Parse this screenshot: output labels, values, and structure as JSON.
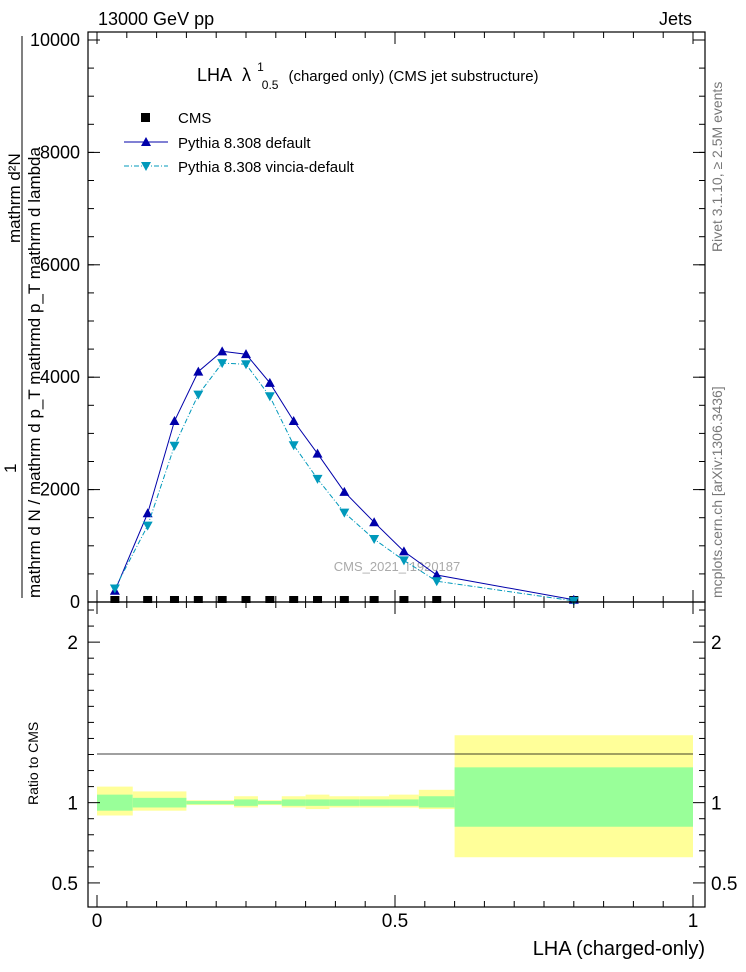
{
  "header": {
    "left": "13000 GeV pp",
    "right": "Jets"
  },
  "side_labels": {
    "rivet": "Rivet 3.1.10, ≥ 2.5M events",
    "mcplots": "mcplots.cern.ch [arXiv:1306.3436]"
  },
  "watermark": "CMS_2021_I1920187",
  "chart_data": [
    {
      "type": "line",
      "title": "LHA",
      "title_lambda": "λ",
      "title_sup": "1",
      "title_sub": "0.5",
      "title_rest": "(charged only) (CMS jet substructure)",
      "ylabel_numerator": "mathrm d²N",
      "ylabel_denominator": "mathrm d N / mathrm d p_T mathrmd p_T mathrm d lambda",
      "ylabel_one": "1",
      "xlim": [
        0,
        1
      ],
      "ylim": [
        0,
        10000
      ],
      "yticks": [
        "0",
        "2000",
        "4000",
        "6000",
        "8000",
        "10000"
      ],
      "legend": [
        "CMS",
        "Pythia 8.308 default",
        "Pythia 8.308 vincia-default"
      ],
      "series": [
        {
          "name": "CMS",
          "marker": "square",
          "color": "#000000",
          "x": [
            0.03,
            0.085,
            0.13,
            0.17,
            0.21,
            0.25,
            0.29,
            0.33,
            0.37,
            0.415,
            0.465,
            0.515,
            0.57,
            0.8
          ],
          "values": [
            0,
            0,
            0,
            0,
            0,
            0,
            0,
            0,
            0,
            0,
            0,
            0,
            0,
            0
          ]
        },
        {
          "name": "Pythia 8.308 default",
          "marker": "triangle-up",
          "color": "#0000aa",
          "x": [
            0.03,
            0.085,
            0.13,
            0.17,
            0.21,
            0.25,
            0.29,
            0.33,
            0.37,
            0.415,
            0.465,
            0.515,
            0.57,
            0.8
          ],
          "values": [
            200,
            1580,
            3220,
            4100,
            4460,
            4410,
            3900,
            3220,
            2640,
            1960,
            1420,
            900,
            480,
            40
          ]
        },
        {
          "name": "Pythia 8.308 vincia-default",
          "marker": "triangle-down",
          "color": "#0099bb",
          "x": [
            0.03,
            0.085,
            0.13,
            0.17,
            0.21,
            0.25,
            0.29,
            0.33,
            0.37,
            0.415,
            0.465,
            0.515,
            0.57,
            0.8
          ],
          "values": [
            240,
            1360,
            2780,
            3690,
            4250,
            4230,
            3660,
            2790,
            2190,
            1590,
            1120,
            740,
            370,
            20
          ]
        }
      ]
    },
    {
      "type": "area",
      "ylabel": "Ratio to CMS",
      "xlabel": "LHA (charged-only)",
      "xlim": [
        0,
        1
      ],
      "ylim": [
        0.35,
        2.25
      ],
      "yticks": [
        "0.5",
        "1",
        "2"
      ],
      "xticks": [
        "0",
        "0.5",
        "1"
      ],
      "bins": [
        0,
        0.06,
        0.15,
        0.23,
        0.27,
        0.31,
        0.35,
        0.39,
        0.44,
        0.49,
        0.54,
        0.6,
        1.0
      ],
      "inner_band": [
        [
          0.95,
          1.05
        ],
        [
          0.97,
          1.03
        ],
        [
          0.99,
          1.01
        ],
        [
          0.98,
          1.02
        ],
        [
          0.99,
          1.01
        ],
        [
          0.98,
          1.02
        ],
        [
          0.98,
          1.02
        ],
        [
          0.98,
          1.02
        ],
        [
          0.98,
          1.02
        ],
        [
          0.98,
          1.02
        ],
        [
          0.97,
          1.04
        ],
        [
          0.85,
          1.22
        ]
      ],
      "outer_band": [
        [
          0.92,
          1.1
        ],
        [
          0.95,
          1.07
        ],
        [
          0.985,
          1.015
        ],
        [
          0.97,
          1.04
        ],
        [
          0.985,
          1.015
        ],
        [
          0.97,
          1.04
        ],
        [
          0.96,
          1.05
        ],
        [
          0.97,
          1.04
        ],
        [
          0.97,
          1.04
        ],
        [
          0.97,
          1.05
        ],
        [
          0.96,
          1.08
        ],
        [
          0.66,
          1.42
        ]
      ],
      "colors": {
        "inner": "#99ff99",
        "outer": "#ffff99"
      }
    }
  ]
}
